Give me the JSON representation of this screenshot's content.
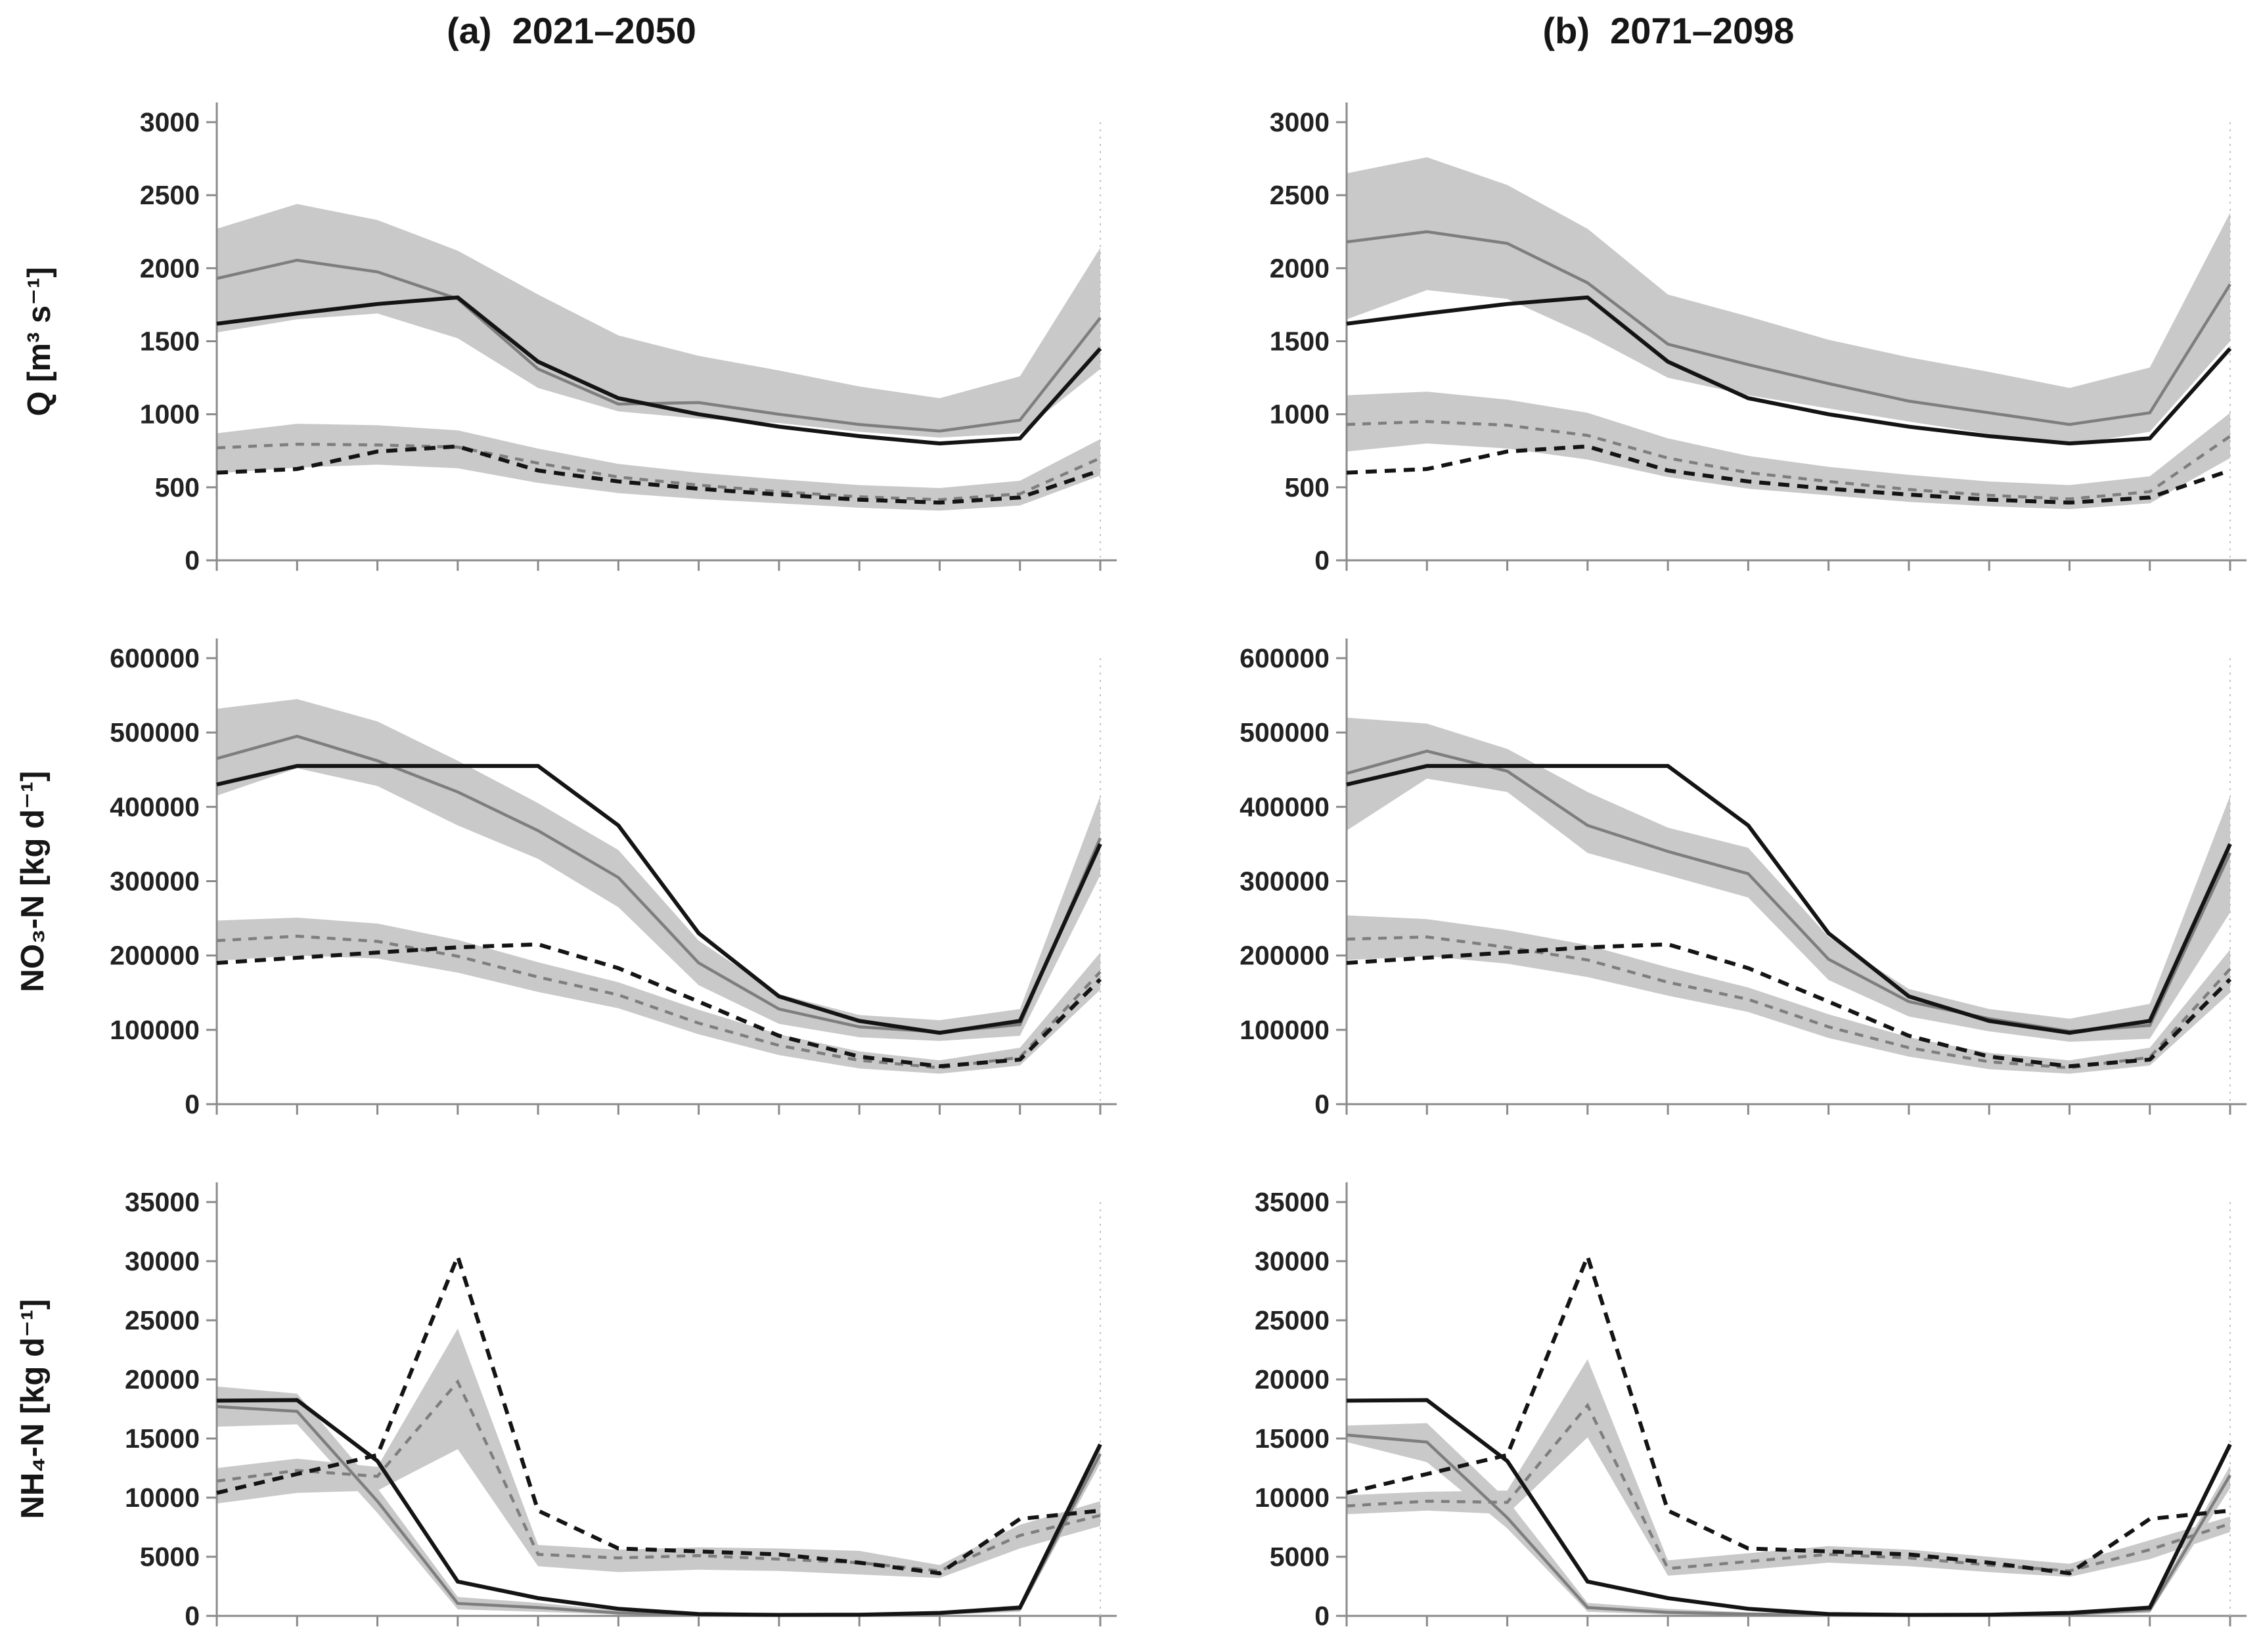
{
  "figure": {
    "panel_titles": {
      "a": "(a)  2021–2050",
      "b": "(b)  2071–2098"
    },
    "row_labels": [
      "Q [m³ s⁻¹]",
      "NO₃-N [kg d⁻¹]",
      "NH₄-N [kg d⁻¹]"
    ],
    "colors": {
      "black_line": "#141414",
      "gray_line": "#7e7e7e",
      "band": "#c9c9c9",
      "axis": "#8a8a8a",
      "tick_label": "#222222",
      "right_guide": "#c2c2c2"
    },
    "x_axis": {
      "ticks_per_panel": 12,
      "tick_labels_visible": false
    }
  },
  "chart_data": [
    {
      "id": "q-a",
      "row": 0,
      "col": 0,
      "type": "line",
      "title": "(a)  2021–2050",
      "ylabel": "Q [m³ s⁻¹]",
      "ylim": [
        0,
        3000
      ],
      "yticks": [
        "0",
        "500",
        "1000",
        "1500",
        "2000",
        "2500",
        "3000"
      ],
      "n_points": 12,
      "series": {
        "gray_solid": [
          1930,
          2055,
          1975,
          1790,
          1310,
          1070,
          1080,
          1000,
          930,
          885,
          960,
          1660
        ],
        "black_solid": [
          1620,
          1690,
          1755,
          1800,
          1360,
          1110,
          1000,
          915,
          850,
          800,
          835,
          1450
        ],
        "gray_dashed": [
          770,
          795,
          790,
          775,
          665,
          570,
          515,
          470,
          435,
          415,
          455,
          700
        ],
        "black_dashed": [
          600,
          625,
          745,
          780,
          615,
          540,
          490,
          450,
          415,
          395,
          430,
          615
        ]
      },
      "bands": {
        "band_solid": {
          "upper": [
            2270,
            2440,
            2330,
            2120,
            1820,
            1540,
            1400,
            1300,
            1190,
            1110,
            1260,
            2140
          ],
          "lower": [
            1560,
            1650,
            1690,
            1520,
            1180,
            1020,
            970,
            940,
            880,
            840,
            870,
            1310
          ]
        },
        "band_dashed": {
          "upper": [
            870,
            935,
            925,
            890,
            765,
            660,
            600,
            555,
            515,
            495,
            545,
            830
          ],
          "lower": [
            595,
            635,
            655,
            630,
            530,
            460,
            420,
            390,
            360,
            340,
            375,
            580
          ]
        }
      }
    },
    {
      "id": "q-b",
      "row": 0,
      "col": 1,
      "type": "line",
      "title": "(b)  2071–2098",
      "ylabel": "Q [m³ s⁻¹]",
      "ylim": [
        0,
        3000
      ],
      "yticks": [
        "0",
        "500",
        "1000",
        "1500",
        "2000",
        "2500",
        "3000"
      ],
      "n_points": 12,
      "series": {
        "gray_solid": [
          2180,
          2250,
          2170,
          1900,
          1480,
          1340,
          1210,
          1090,
          1010,
          930,
          1010,
          1890
        ],
        "black_solid": [
          1620,
          1690,
          1755,
          1800,
          1360,
          1110,
          1000,
          915,
          850,
          800,
          835,
          1450
        ],
        "gray_dashed": [
          930,
          950,
          925,
          855,
          700,
          600,
          540,
          485,
          445,
          420,
          470,
          850
        ],
        "black_dashed": [
          600,
          625,
          745,
          780,
          615,
          540,
          490,
          450,
          415,
          395,
          430,
          615
        ]
      },
      "bands": {
        "band_solid": {
          "upper": [
            2650,
            2760,
            2570,
            2270,
            1820,
            1670,
            1510,
            1390,
            1290,
            1180,
            1320,
            2380
          ],
          "lower": [
            1650,
            1850,
            1790,
            1540,
            1250,
            1130,
            1040,
            950,
            865,
            790,
            880,
            1500
          ]
        },
        "band_dashed": {
          "upper": [
            1130,
            1155,
            1100,
            1010,
            835,
            715,
            640,
            585,
            540,
            515,
            575,
            1010
          ],
          "lower": [
            745,
            800,
            765,
            690,
            570,
            490,
            445,
            400,
            370,
            350,
            390,
            700
          ]
        }
      }
    },
    {
      "id": "no3-a",
      "row": 1,
      "col": 0,
      "type": "line",
      "title": "",
      "ylabel": "NO₃-N [kg d⁻¹]",
      "ylim": [
        0,
        600000
      ],
      "yticks": [
        "0",
        "100000",
        "200000",
        "300000",
        "400000",
        "500000",
        "600000"
      ],
      "n_points": 12,
      "series": {
        "gray_solid": [
          465000,
          495000,
          462000,
          420000,
          368000,
          305000,
          190000,
          128000,
          104000,
          97000,
          107000,
          358000
        ],
        "black_solid": [
          430000,
          455000,
          455000,
          455000,
          455000,
          375000,
          230000,
          145000,
          112000,
          96000,
          112000,
          350000
        ],
        "gray_dashed": [
          220000,
          226000,
          219000,
          199000,
          171000,
          147000,
          109000,
          79000,
          59000,
          49000,
          63000,
          178000
        ],
        "black_dashed": [
          190000,
          197000,
          204000,
          211000,
          215000,
          183000,
          138000,
          92000,
          64000,
          51000,
          60000,
          168000
        ]
      },
      "bands": {
        "band_solid": {
          "upper": [
            532000,
            545000,
            515000,
            462000,
            405000,
            342000,
            220000,
            148000,
            120000,
            113000,
            128000,
            415000
          ],
          "lower": [
            415000,
            452000,
            428000,
            375000,
            330000,
            265000,
            160000,
            108000,
            90000,
            85000,
            92000,
            308000
          ]
        },
        "band_dashed": {
          "upper": [
            247000,
            251000,
            243000,
            221000,
            191000,
            164000,
            127000,
            94000,
            71000,
            59000,
            76000,
            204000
          ],
          "lower": [
            193000,
            200000,
            196000,
            177000,
            151000,
            129000,
            94000,
            66000,
            48000,
            41000,
            52000,
            154000
          ]
        }
      }
    },
    {
      "id": "no3-b",
      "row": 1,
      "col": 1,
      "type": "line",
      "title": "",
      "ylabel": "NO₃-N [kg d⁻¹]",
      "ylim": [
        0,
        600000
      ],
      "yticks": [
        "0",
        "100000",
        "200000",
        "300000",
        "400000",
        "500000",
        "600000"
      ],
      "n_points": 12,
      "series": {
        "gray_solid": [
          445000,
          475000,
          448000,
          375000,
          340000,
          310000,
          195000,
          138000,
          115000,
          98000,
          106000,
          338000
        ],
        "black_solid": [
          430000,
          455000,
          455000,
          455000,
          455000,
          375000,
          230000,
          145000,
          112000,
          96000,
          112000,
          350000
        ],
        "gray_dashed": [
          222000,
          225000,
          211000,
          194000,
          164000,
          141000,
          104000,
          76000,
          57000,
          49000,
          63000,
          182000
        ],
        "black_dashed": [
          190000,
          197000,
          204000,
          211000,
          215000,
          183000,
          138000,
          92000,
          64000,
          51000,
          60000,
          168000
        ]
      },
      "bands": {
        "band_solid": {
          "upper": [
            520000,
            512000,
            478000,
            420000,
            372000,
            345000,
            225000,
            155000,
            128000,
            115000,
            135000,
            415000
          ],
          "lower": [
            368000,
            438000,
            420000,
            338000,
            308000,
            278000,
            167000,
            118000,
            98000,
            84000,
            88000,
            258000
          ]
        },
        "band_dashed": {
          "upper": [
            254000,
            249000,
            234000,
            214000,
            184000,
            157000,
            121000,
            90000,
            69000,
            59000,
            76000,
            208000
          ],
          "lower": [
            194000,
            199000,
            189000,
            171000,
            146000,
            124000,
            89000,
            64000,
            47000,
            41000,
            52000,
            150000
          ]
        }
      }
    },
    {
      "id": "nh4-a",
      "row": 2,
      "col": 0,
      "type": "line",
      "title": "",
      "ylabel": "NH₄-N [kg d⁻¹]",
      "ylim": [
        0,
        35000
      ],
      "yticks": [
        "0",
        "5000",
        "10000",
        "15000",
        "20000",
        "25000",
        "30000",
        "35000"
      ],
      "n_points": 12,
      "series": {
        "gray_solid": [
          17700,
          17300,
          9700,
          1050,
          700,
          250,
          100,
          80,
          100,
          200,
          600,
          13700
        ],
        "black_solid": [
          18200,
          18250,
          13100,
          2900,
          1500,
          600,
          150,
          80,
          100,
          250,
          700,
          14500
        ],
        "gray_dashed": [
          11400,
          12300,
          11800,
          19800,
          5200,
          4900,
          5100,
          4800,
          4500,
          3800,
          6800,
          8500
        ],
        "black_dashed": [
          10400,
          12000,
          13600,
          30400,
          8900,
          5700,
          5450,
          5200,
          4500,
          3600,
          8200,
          8900
        ]
      },
      "bands": {
        "band_solid": {
          "upper": [
            19400,
            18800,
            10800,
            1600,
            1100,
            450,
            250,
            200,
            250,
            400,
            900,
            14400
          ],
          "lower": [
            16000,
            16200,
            8700,
            550,
            350,
            100,
            30,
            20,
            30,
            80,
            350,
            12900
          ]
        },
        "band_dashed": {
          "upper": [
            12500,
            13300,
            12600,
            24300,
            6000,
            5600,
            5800,
            5700,
            5500,
            4300,
            7700,
            9700
          ],
          "lower": [
            9500,
            10400,
            10600,
            14100,
            4200,
            3700,
            3900,
            3800,
            3500,
            3200,
            5700,
            7600
          ]
        }
      }
    },
    {
      "id": "nh4-b",
      "row": 2,
      "col": 1,
      "type": "line",
      "title": "",
      "ylabel": "NH₄-N [kg d⁻¹]",
      "ylim": [
        0,
        35000
      ],
      "yticks": [
        "0",
        "5000",
        "10000",
        "15000",
        "20000",
        "25000",
        "30000",
        "35000"
      ],
      "n_points": 12,
      "series": {
        "gray_solid": [
          15300,
          14700,
          8300,
          700,
          300,
          150,
          80,
          60,
          80,
          150,
          500,
          11900
        ],
        "black_solid": [
          18200,
          18250,
          13100,
          2900,
          1500,
          600,
          150,
          80,
          100,
          250,
          700,
          14500
        ],
        "gray_dashed": [
          9300,
          9700,
          9600,
          17800,
          4000,
          4600,
          5200,
          4900,
          4300,
          3800,
          5600,
          7800
        ],
        "black_dashed": [
          10400,
          12000,
          13600,
          30400,
          8900,
          5700,
          5450,
          5200,
          4500,
          3600,
          8200,
          8900
        ]
      },
      "bands": {
        "band_solid": {
          "upper": [
            16100,
            16300,
            9800,
            1100,
            600,
            300,
            200,
            150,
            200,
            300,
            800,
            12700
          ],
          "lower": [
            14700,
            13000,
            7400,
            350,
            100,
            50,
            20,
            10,
            20,
            50,
            250,
            10800
          ]
        },
        "band_dashed": {
          "upper": [
            10200,
            10500,
            10600,
            21700,
            4700,
            5300,
            5900,
            5600,
            5000,
            4400,
            6400,
            8400
          ],
          "lower": [
            8600,
            8900,
            8600,
            15100,
            3400,
            3900,
            4500,
            4200,
            3700,
            3300,
            4800,
            7100
          ]
        }
      }
    }
  ]
}
